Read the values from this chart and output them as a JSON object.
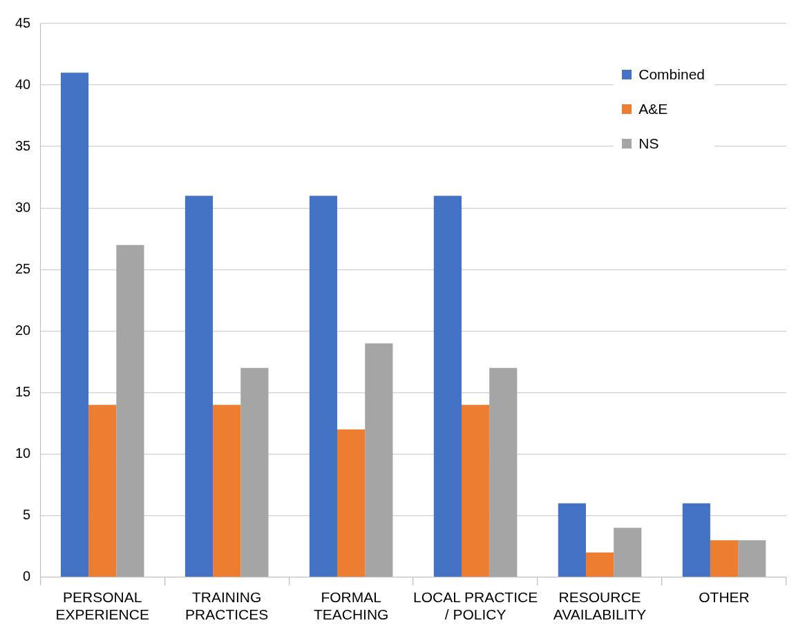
{
  "chart_data": {
    "type": "bar",
    "categories": [
      "PERSONAL EXPERIENCE",
      "TRAINING PRACTICES",
      "FORMAL TEACHING",
      "LOCAL PRACTICE / POLICY",
      "RESOURCE AVAILABILITY",
      "OTHER"
    ],
    "series": [
      {
        "name": "Combined",
        "color": "#4472c4",
        "values": [
          41,
          31,
          31,
          31,
          6,
          6
        ]
      },
      {
        "name": "A&E",
        "color": "#ed7d31",
        "values": [
          14,
          14,
          12,
          14,
          2,
          3
        ]
      },
      {
        "name": "NS",
        "color": "#a5a5a5",
        "values": [
          27,
          17,
          19,
          17,
          4,
          3
        ]
      }
    ],
    "ylim": [
      0,
      45
    ],
    "yticks": [
      0,
      5,
      10,
      15,
      20,
      25,
      30,
      35,
      40,
      45
    ],
    "grid": "y",
    "legend": "top right"
  }
}
